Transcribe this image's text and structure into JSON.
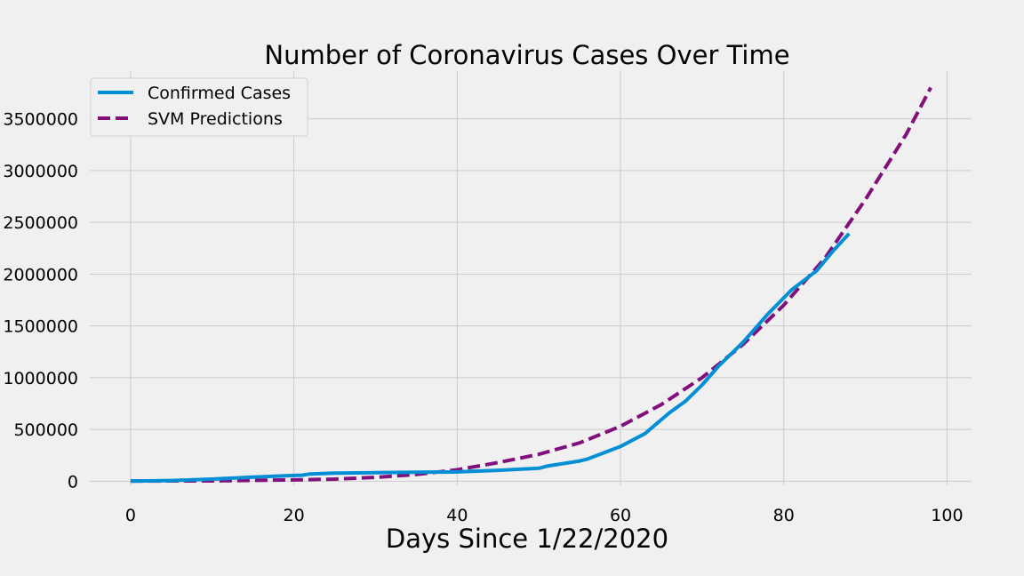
{
  "chart_data": {
    "type": "line",
    "title": "Number of Coronavirus Cases Over Time",
    "xlabel": "Days Since 1/22/2020",
    "ylabel": "",
    "xlim": [
      -5,
      103
    ],
    "ylim": [
      -40000,
      3960000
    ],
    "x_ticks": [
      0,
      20,
      40,
      60,
      80,
      100
    ],
    "y_ticks": [
      0,
      500000,
      1000000,
      1500000,
      2000000,
      2500000,
      3000000,
      3500000
    ],
    "grid": true,
    "legend_position": "upper-left",
    "series": [
      {
        "name": "Confirmed Cases",
        "color": "#008fd5",
        "style": "solid",
        "x": [
          0,
          5,
          10,
          15,
          20,
          21,
          22,
          25,
          30,
          35,
          40,
          45,
          50,
          51,
          55,
          56,
          60,
          63,
          66,
          68,
          70,
          72,
          75,
          78,
          80,
          81,
          84,
          86,
          88
        ],
        "values": [
          500,
          6000,
          20000,
          40000,
          55000,
          58000,
          70000,
          78000,
          82000,
          86000,
          90000,
          105000,
          125000,
          145000,
          195000,
          215000,
          335000,
          460000,
          660000,
          775000,
          930000,
          1110000,
          1340000,
          1610000,
          1770000,
          1850000,
          2030000,
          2220000,
          2390000
        ]
      },
      {
        "name": "SVM Predictions",
        "color": "#810f7c",
        "style": "dashed",
        "x": [
          0,
          10,
          20,
          25,
          30,
          35,
          40,
          45,
          50,
          55,
          60,
          65,
          70,
          75,
          80,
          85,
          90,
          95,
          98
        ],
        "values": [
          2000,
          3000,
          12000,
          20000,
          37000,
          65000,
          110000,
          180000,
          260000,
          370000,
          530000,
          740000,
          1000000,
          1320000,
          1700000,
          2150000,
          2720000,
          3350000,
          3800000
        ]
      }
    ]
  }
}
